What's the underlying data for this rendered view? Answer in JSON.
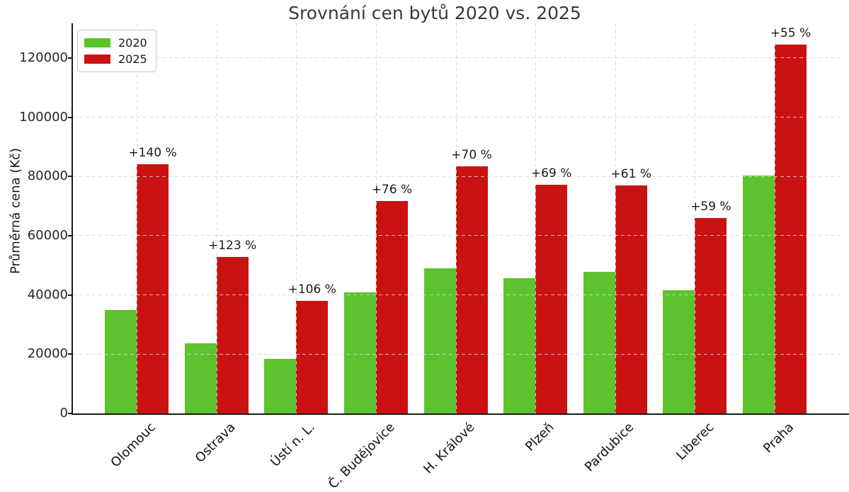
{
  "chart_data": {
    "type": "bar",
    "title": "Srovnání cen bytů 2020 vs. 2025",
    "xlabel": "",
    "ylabel": "Průměrná cena (Kč)",
    "categories": [
      "Olomouc",
      "Ostrava",
      "Ústí n. L.",
      "Č. Budějovice",
      "H. Králové",
      "Plzeň",
      "Pardubice",
      "Liberec",
      "Praha"
    ],
    "series": [
      {
        "name": "2020",
        "color": "#5cc22d",
        "values": [
          35000,
          23700,
          18400,
          40800,
          49000,
          45700,
          47800,
          41500,
          80400
        ]
      },
      {
        "name": "2025",
        "color": "#cb1212",
        "values": [
          84000,
          52900,
          37900,
          71800,
          83300,
          77200,
          76900,
          65900,
          124600
        ]
      }
    ],
    "annotations": [
      "+140 %",
      "+123 %",
      "+106 %",
      "+76 %",
      "+70 %",
      "+69 %",
      "+61 %",
      "+59 %",
      "+55 %"
    ],
    "yticks": [
      0,
      20000,
      40000,
      60000,
      80000,
      100000,
      120000
    ],
    "ytick_labels": [
      "0",
      "20000",
      "40000",
      "60000",
      "80000",
      "100000",
      "120000"
    ],
    "ylim": [
      0,
      131700
    ],
    "grid": "dashed-both-axes",
    "legend_position": "upper left",
    "colors": {
      "background": "#ffffff",
      "grid": "#d7d7d7",
      "spine": "#1a1a1a",
      "title_text": "#3a3a3a",
      "tick_text": "#262626"
    }
  }
}
